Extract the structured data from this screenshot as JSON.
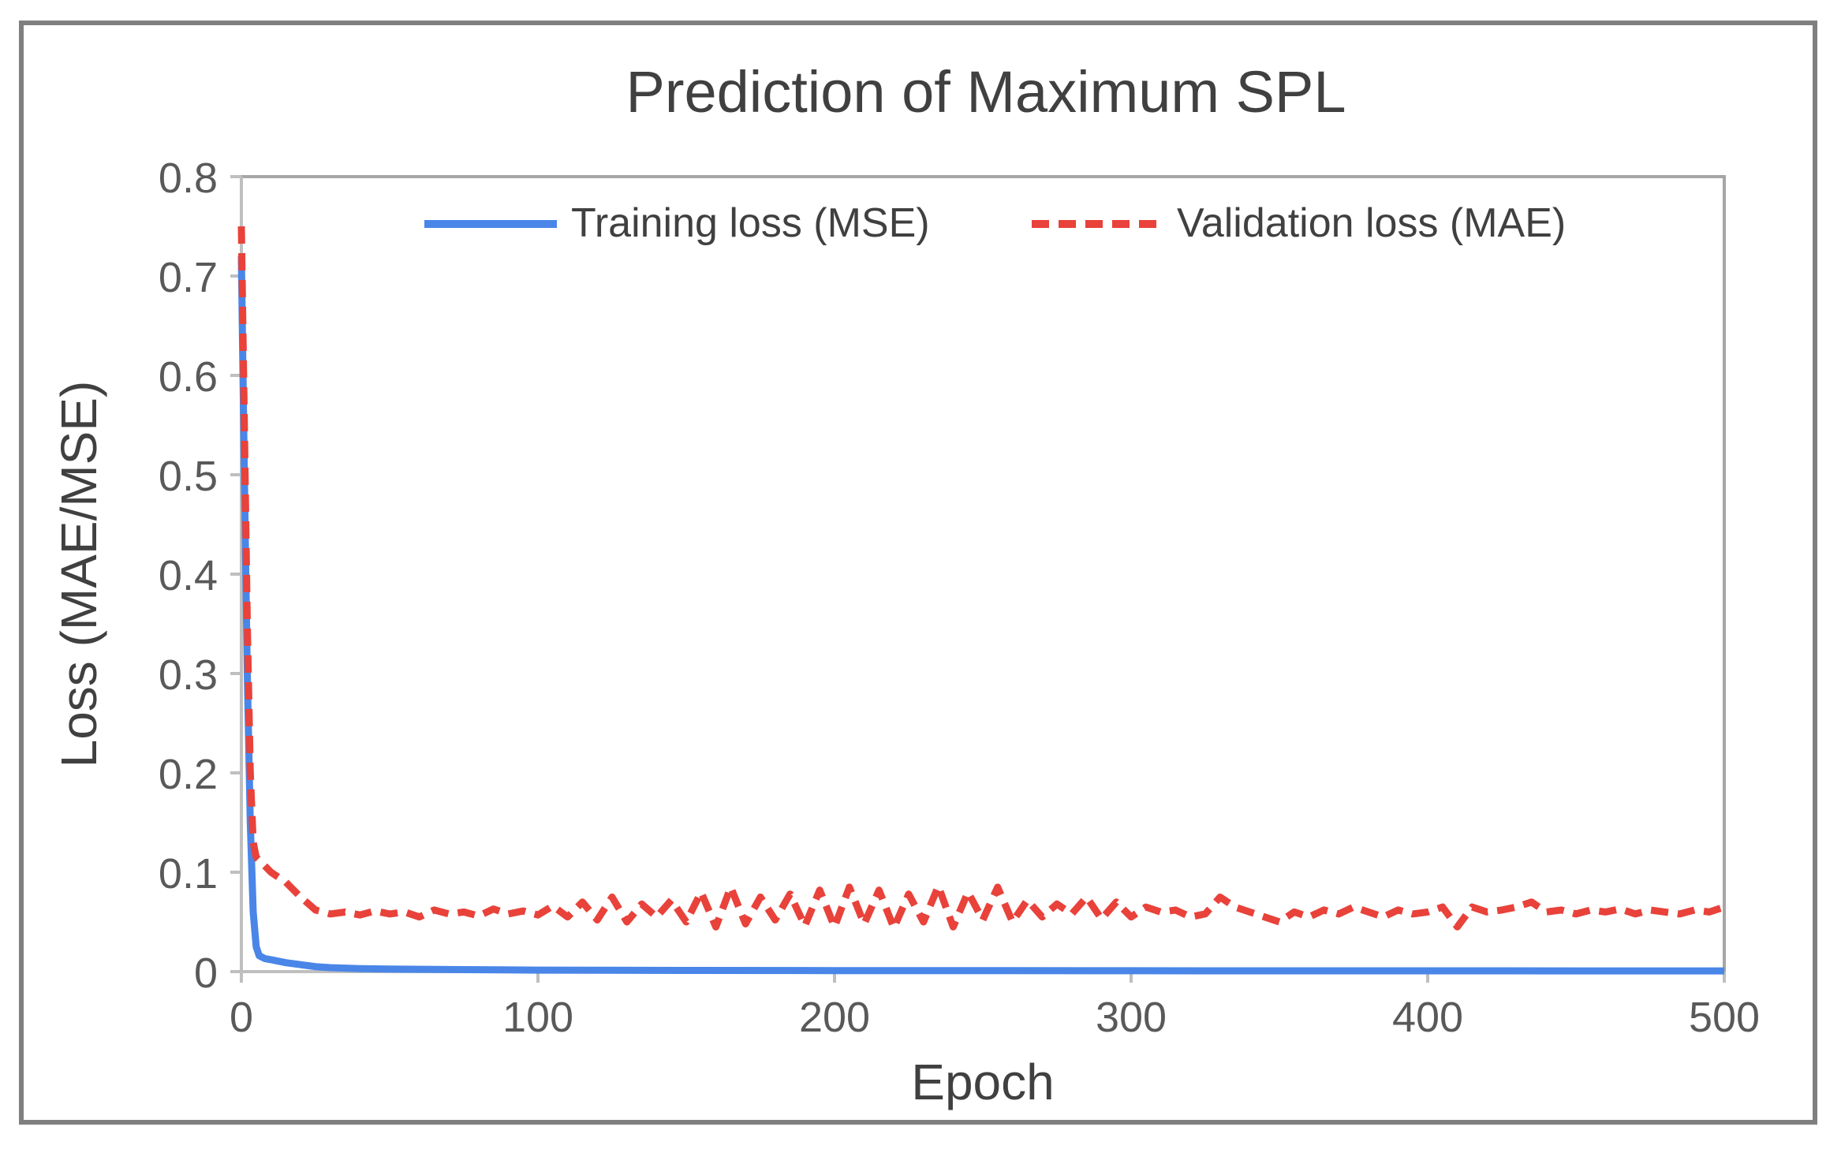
{
  "chart_data": {
    "type": "line",
    "title": "Prediction of Maximum SPL",
    "xlabel": "Epoch",
    "ylabel": "Loss (MAE/MSE)",
    "xlim": [
      0,
      500
    ],
    "ylim": [
      0,
      0.8
    ],
    "x_ticks": [
      "0",
      "100",
      "200",
      "300",
      "400",
      "500"
    ],
    "y_ticks": [
      "0",
      "0.1",
      "0.2",
      "0.3",
      "0.4",
      "0.5",
      "0.6",
      "0.7",
      "0.8"
    ],
    "grid": false,
    "legend_position": "top",
    "series": [
      {
        "name": "Training loss (MSE)",
        "color": "#4a86e8",
        "style": "solid",
        "x": [
          0,
          1,
          2,
          3,
          4,
          5,
          6,
          8,
          10,
          15,
          20,
          25,
          30,
          40,
          50,
          75,
          100,
          150,
          200,
          250,
          300,
          350,
          400,
          450,
          500
        ],
        "values": [
          0.72,
          0.5,
          0.3,
          0.15,
          0.06,
          0.025,
          0.016,
          0.013,
          0.012,
          0.009,
          0.007,
          0.005,
          0.004,
          0.003,
          0.0025,
          0.002,
          0.0015,
          0.0012,
          0.001,
          0.001,
          0.0009,
          0.0008,
          0.0008,
          0.0007,
          0.0007
        ]
      },
      {
        "name": "Validation loss (MAE)",
        "color": "#e8423a",
        "style": "dashed",
        "x": [
          0,
          1,
          2,
          3,
          4,
          5,
          10,
          15,
          20,
          25,
          30,
          35,
          40,
          45,
          50,
          55,
          60,
          65,
          70,
          75,
          80,
          85,
          90,
          95,
          100,
          105,
          110,
          115,
          120,
          125,
          130,
          135,
          140,
          145,
          150,
          155,
          160,
          165,
          170,
          175,
          180,
          185,
          190,
          195,
          200,
          205,
          210,
          215,
          220,
          225,
          230,
          235,
          240,
          245,
          250,
          255,
          260,
          265,
          270,
          275,
          280,
          285,
          290,
          295,
          300,
          305,
          310,
          315,
          320,
          325,
          330,
          335,
          340,
          345,
          350,
          355,
          360,
          365,
          370,
          375,
          380,
          385,
          390,
          395,
          400,
          405,
          410,
          415,
          420,
          425,
          430,
          435,
          440,
          445,
          450,
          455,
          460,
          465,
          470,
          475,
          480,
          485,
          490,
          495,
          500
        ],
        "values": [
          0.75,
          0.55,
          0.35,
          0.2,
          0.13,
          0.115,
          0.1,
          0.09,
          0.075,
          0.062,
          0.058,
          0.06,
          0.057,
          0.061,
          0.058,
          0.06,
          0.055,
          0.062,
          0.058,
          0.06,
          0.056,
          0.063,
          0.058,
          0.061,
          0.057,
          0.066,
          0.055,
          0.07,
          0.052,
          0.075,
          0.05,
          0.068,
          0.055,
          0.072,
          0.05,
          0.08,
          0.045,
          0.085,
          0.048,
          0.075,
          0.052,
          0.078,
          0.046,
          0.082,
          0.045,
          0.085,
          0.048,
          0.082,
          0.044,
          0.078,
          0.05,
          0.086,
          0.045,
          0.08,
          0.052,
          0.085,
          0.05,
          0.072,
          0.055,
          0.068,
          0.058,
          0.075,
          0.053,
          0.07,
          0.055,
          0.065,
          0.06,
          0.062,
          0.055,
          0.058,
          0.075,
          0.065,
          0.06,
          0.055,
          0.05,
          0.06,
          0.055,
          0.062,
          0.058,
          0.065,
          0.06,
          0.055,
          0.062,
          0.058,
          0.06,
          0.065,
          0.045,
          0.065,
          0.06,
          0.062,
          0.065,
          0.07,
          0.06,
          0.062,
          0.058,
          0.062,
          0.06,
          0.063,
          0.058,
          0.062,
          0.06,
          0.058,
          0.062,
          0.06,
          0.065
        ]
      }
    ]
  }
}
